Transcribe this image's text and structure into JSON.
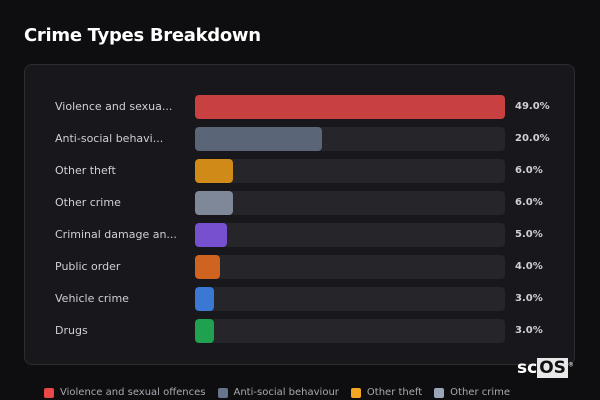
{
  "title": "Crime Types Breakdown",
  "logo": {
    "prefix": "sc",
    "box": "OS",
    "mark": "®"
  },
  "chart_data": {
    "type": "bar",
    "orientation": "horizontal",
    "title": "Crime Types Breakdown",
    "categories": [
      "Violence and sexua...",
      "Anti-social behavi...",
      "Other theft",
      "Other crime",
      "Criminal damage an...",
      "Public order",
      "Vehicle crime",
      "Drugs"
    ],
    "values": [
      49.0,
      20.0,
      6.0,
      6.0,
      5.0,
      4.0,
      3.0,
      3.0
    ],
    "value_labels": [
      "49.0%",
      "20.0%",
      "6.0%",
      "6.0%",
      "5.0%",
      "4.0%",
      "3.0%",
      "3.0%"
    ],
    "colors": [
      "#c94040",
      "#5b6578",
      "#cf8a17",
      "#7f8899",
      "#7650cf",
      "#cf6420",
      "#3a78d4",
      "#20a150"
    ],
    "xlim": [
      0,
      49.0
    ],
    "grid": false,
    "legend_position": "bottom",
    "legend": [
      {
        "label": "Violence and sexual offences",
        "color": "#e84848"
      },
      {
        "label": "Anti-social behaviour",
        "color": "#66758c"
      },
      {
        "label": "Other theft",
        "color": "#f5a623"
      },
      {
        "label": "Other crime",
        "color": "#9aa6b8"
      }
    ]
  }
}
